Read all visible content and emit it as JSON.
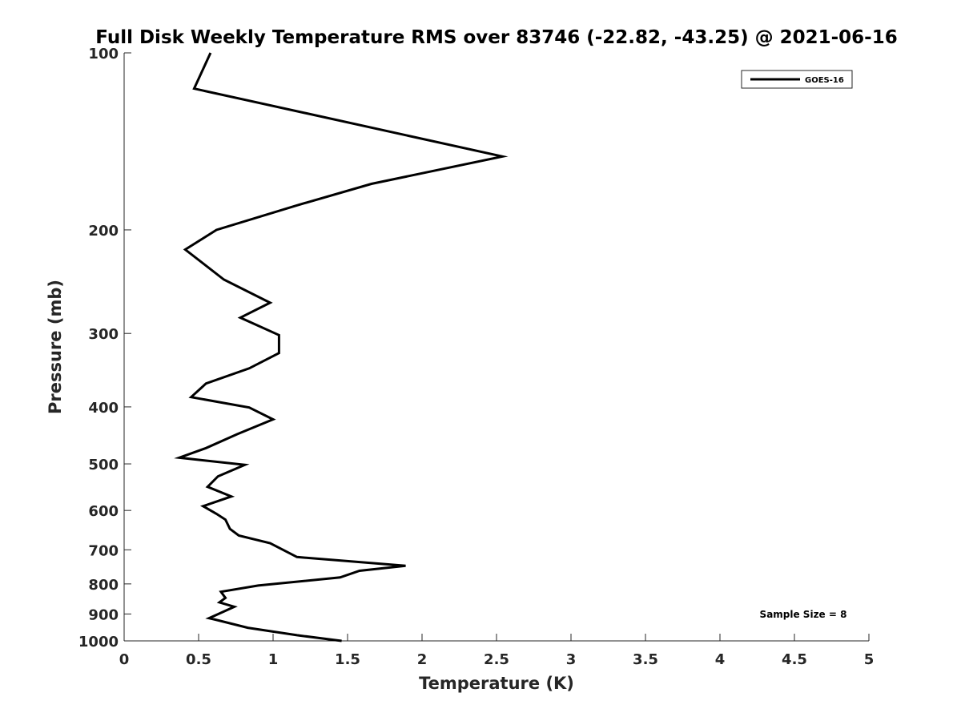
{
  "chart_data": {
    "type": "line",
    "title": "Full Disk Weekly Temperature RMS over 83746 (-22.82, -43.25) @ 2021-06-16",
    "xlabel": "Temperature (K)",
    "ylabel": "Pressure (mb)",
    "xlim": [
      0,
      5
    ],
    "ylim": [
      100,
      1000
    ],
    "yscale": "log",
    "y_reversed": true,
    "grid": false,
    "legend_position": "top-right",
    "x_ticks": [
      "0",
      "0.5",
      "1",
      "1.5",
      "2",
      "2.5",
      "3",
      "3.5",
      "4",
      "4.5",
      "5"
    ],
    "y_ticks": [
      "100",
      "200",
      "300",
      "400",
      "500",
      "600",
      "700",
      "800",
      "900",
      "1000"
    ],
    "annotation": "Sample Size = 8",
    "series": [
      {
        "name": "GOES-16",
        "color": "#000000",
        "points": [
          [
            0.58,
            100
          ],
          [
            0.47,
            115
          ],
          [
            2.54,
            150
          ],
          [
            1.66,
            167
          ],
          [
            1.15,
            182
          ],
          [
            0.62,
            200
          ],
          [
            0.41,
            216
          ],
          [
            0.67,
            243
          ],
          [
            0.98,
            266
          ],
          [
            0.78,
            282
          ],
          [
            1.04,
            302
          ],
          [
            1.04,
            324
          ],
          [
            0.84,
            344
          ],
          [
            0.55,
            365
          ],
          [
            0.45,
            385
          ],
          [
            0.84,
            401
          ],
          [
            1.0,
            420
          ],
          [
            0.76,
            445
          ],
          [
            0.55,
            470
          ],
          [
            0.37,
            488
          ],
          [
            0.81,
            502
          ],
          [
            0.63,
            525
          ],
          [
            0.56,
            547
          ],
          [
            0.72,
            568
          ],
          [
            0.53,
            590
          ],
          [
            0.62,
            608
          ],
          [
            0.68,
            622
          ],
          [
            0.71,
            645
          ],
          [
            0.77,
            662
          ],
          [
            0.98,
            682
          ],
          [
            1.16,
            720
          ],
          [
            1.89,
            745
          ],
          [
            1.58,
            760
          ],
          [
            1.45,
            780
          ],
          [
            0.9,
            805
          ],
          [
            0.65,
            825
          ],
          [
            0.68,
            845
          ],
          [
            0.64,
            860
          ],
          [
            0.74,
            875
          ],
          [
            0.57,
            915
          ],
          [
            0.61,
            920
          ],
          [
            0.83,
            950
          ],
          [
            1.16,
            978
          ],
          [
            1.46,
            1000
          ]
        ]
      }
    ]
  }
}
